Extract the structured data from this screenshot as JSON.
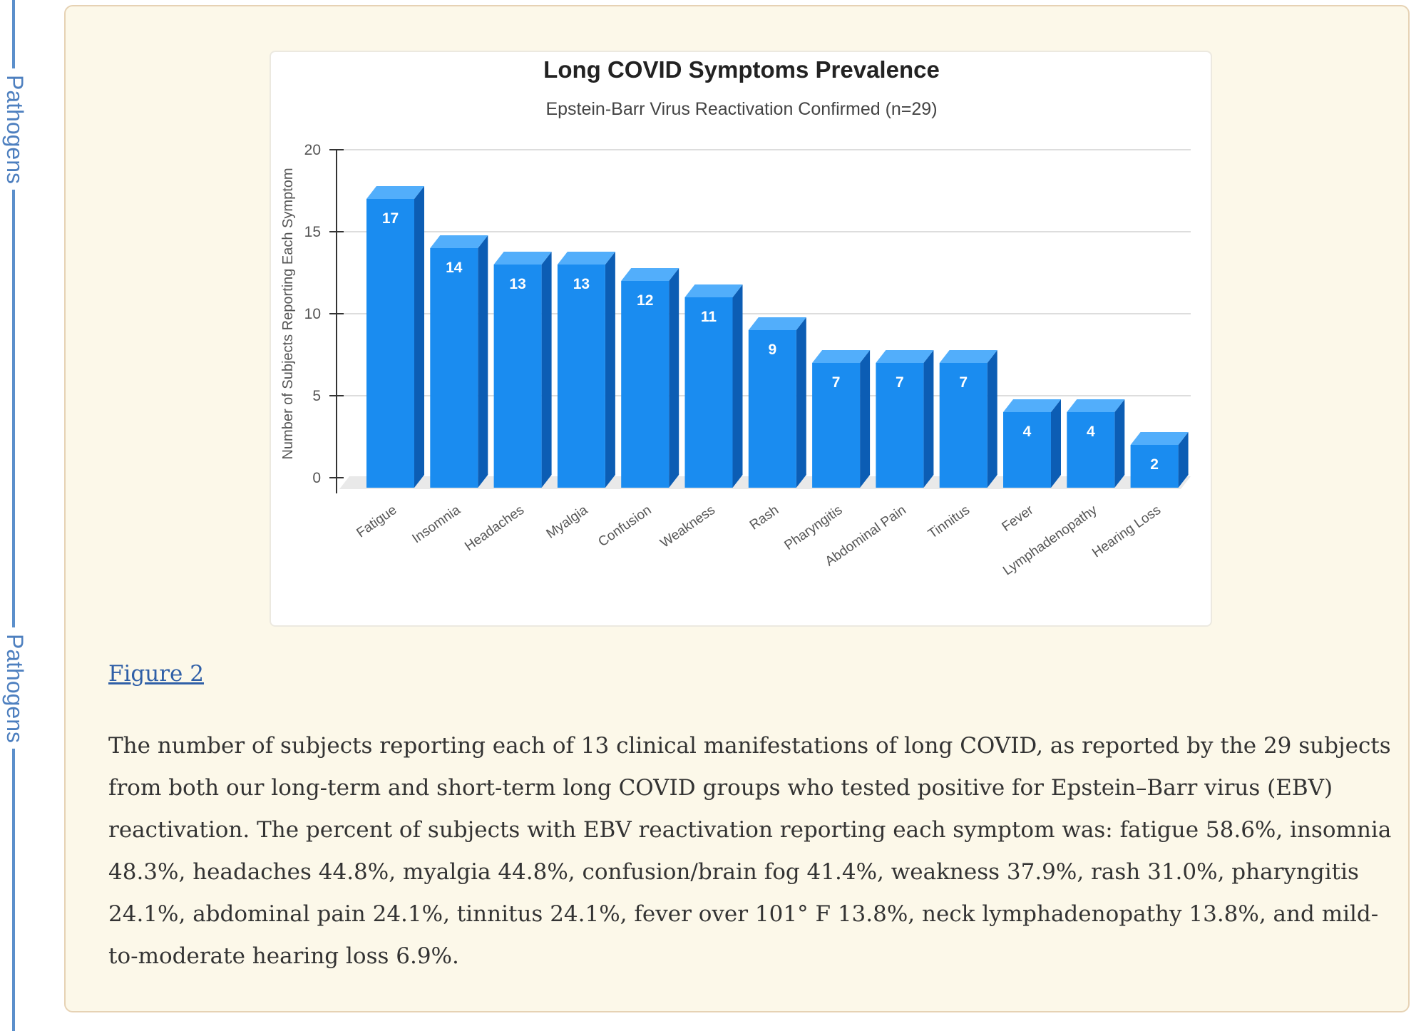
{
  "sidebar": {
    "tab_top": "Pathogens",
    "tab_bottom": "Pathogens"
  },
  "figure": {
    "link_text": "Figure 2",
    "caption": "The number of subjects reporting each of 13 clinical manifestations of long COVID, as reported by the 29 subjects from both our long-term and short-term long COVID groups who tested positive for Epstein–Barr virus (EBV) reactivation. The percent of subjects with EBV reactivation reporting each symptom was: fatigue 58.6%, insomnia 48.3%, headaches 44.8%, myalgia 44.8%, confusion/brain fog 41.4%, weakness 37.9%, rash 31.0%, pharyngitis 24.1%, abdominal pain 24.1%, tinnitus 24.1%, fever over 101° F 13.8%, neck lymphadenopathy 13.8%, and mild-to-moderate hearing loss 6.9%."
  },
  "colors": {
    "bar_front": "#1a8cf0",
    "bar_top": "#52aefb",
    "bar_side": "#0c5db4",
    "grid": "#dddddd",
    "accent": "#5b8fcb"
  },
  "chart_data": {
    "type": "bar",
    "title": "Long COVID Symptoms Prevalence",
    "subtitle": "Epstein-Barr Virus Reactivation Confirmed (n=29)",
    "xlabel": "",
    "ylabel": "Number of Subjects Reporting Each Symptom",
    "categories": [
      "Fatigue",
      "Insomnia",
      "Headaches",
      "Myalgia",
      "Confusion",
      "Weakness",
      "Rash",
      "Pharyngitis",
      "Abdominal Pain",
      "Tinnitus",
      "Fever",
      "Lymphadenopathy",
      "Hearing Loss"
    ],
    "values": [
      17,
      14,
      13,
      13,
      12,
      11,
      9,
      7,
      7,
      7,
      4,
      4,
      2
    ],
    "ylim": [
      0,
      20
    ],
    "yticks": [
      0,
      5,
      10,
      15,
      20
    ],
    "grid": true,
    "style": "3d",
    "data_labels": true
  }
}
